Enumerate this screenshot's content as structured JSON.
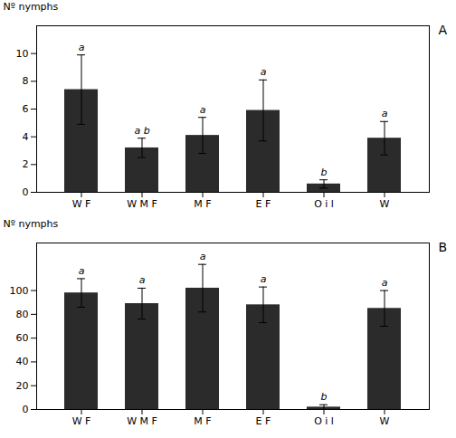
{
  "chart_data": [
    {
      "type": "bar",
      "title": "A",
      "ylabel": "Nº nymphs",
      "categories": [
        "W F",
        "W M F",
        "M F",
        "E F",
        "O i l",
        "W"
      ],
      "values": [
        7.4,
        3.2,
        4.1,
        5.9,
        0.6,
        3.9
      ],
      "errors": [
        2.5,
        0.7,
        1.3,
        2.2,
        0.3,
        1.2
      ],
      "annotations": [
        "a",
        "a b",
        "a",
        "a",
        "b",
        "a"
      ],
      "color": "#2b2b2b",
      "ylim": [
        0,
        12
      ],
      "yticks": [
        0,
        2,
        4,
        6,
        8,
        10
      ],
      "grid": false
    },
    {
      "type": "bar",
      "title": "B",
      "ylabel": "Nº nymphs",
      "categories": [
        "W F",
        "W M F",
        "M F",
        "E F",
        "O i l",
        "W"
      ],
      "values": [
        98,
        89,
        102,
        88,
        2,
        85
      ],
      "errors": [
        12,
        13,
        20,
        15,
        2,
        15
      ],
      "annotations": [
        "a",
        "a",
        "a",
        "a",
        "b",
        "a"
      ],
      "color": "#2b2b2b",
      "ylim": [
        0,
        140
      ],
      "yticks": [
        0,
        20,
        40,
        60,
        80,
        100
      ],
      "grid": false
    }
  ]
}
